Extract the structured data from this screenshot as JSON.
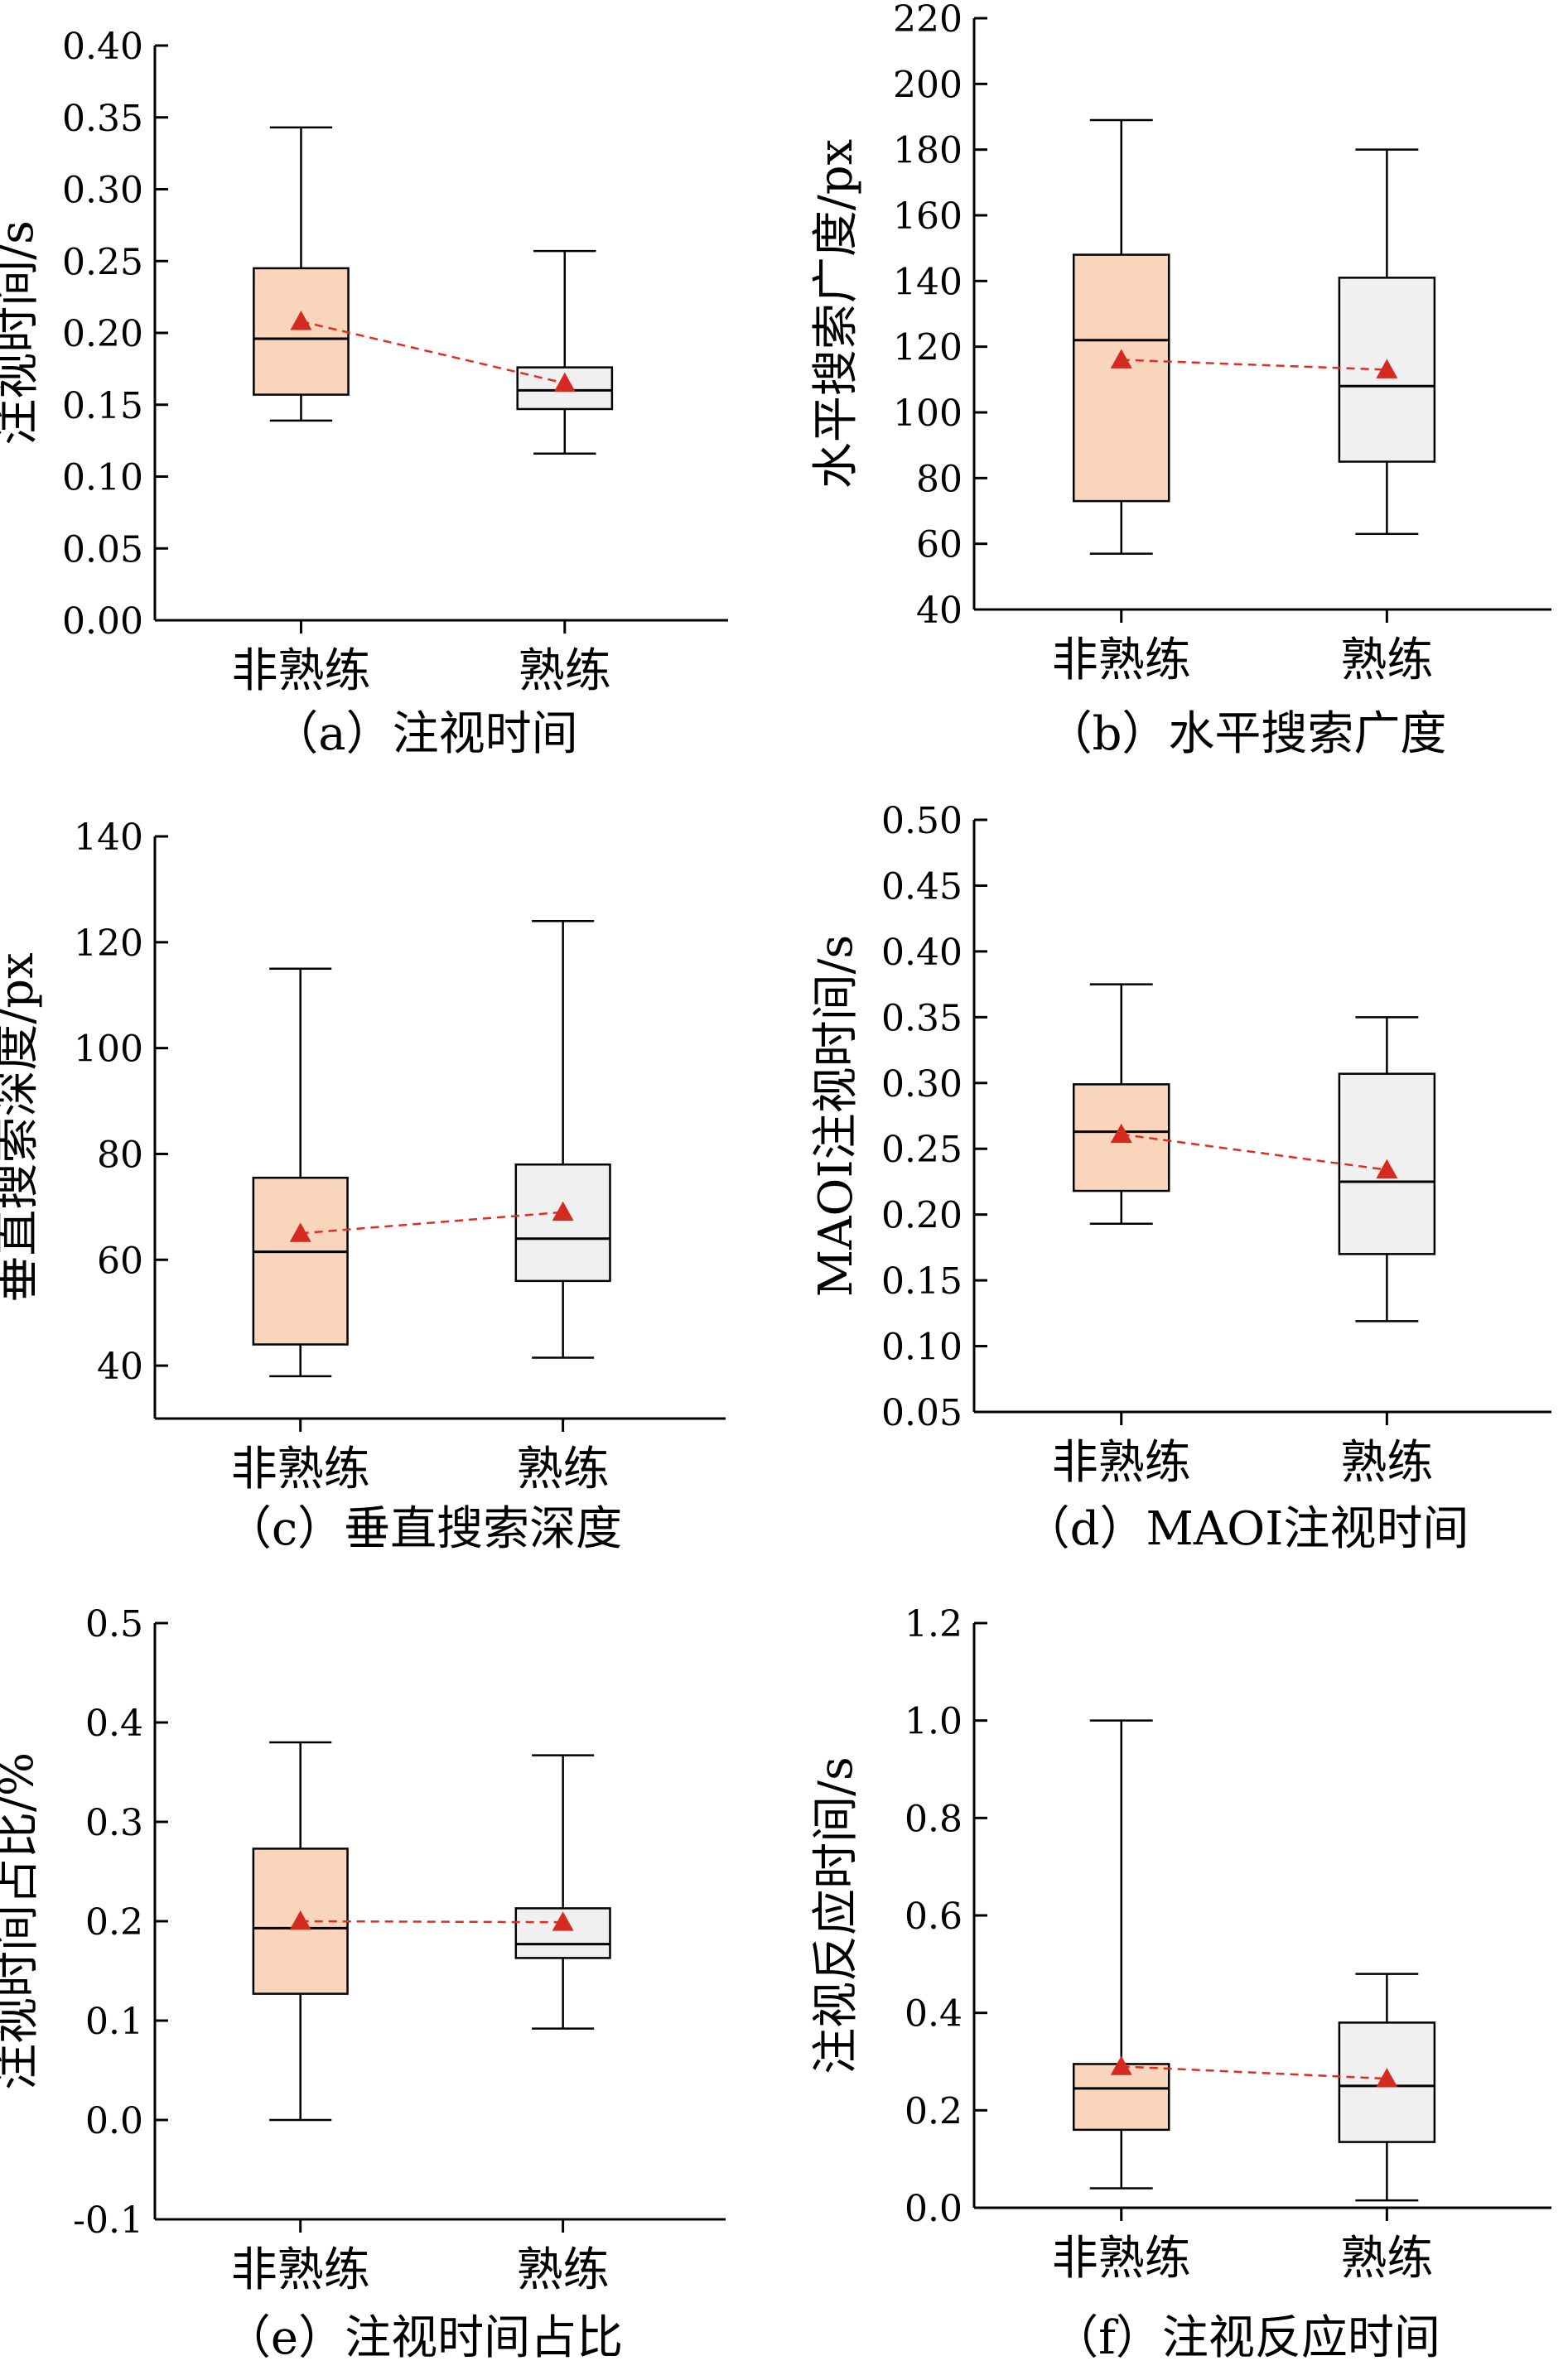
{
  "colors": {
    "nonskilled_fill": "#f8d5bb",
    "skilled_fill": "#f0f0f0",
    "box_stroke": "#000000",
    "mean_marker": "#d42a1f",
    "mean_line": "#e32b1f"
  },
  "chart_data": [
    {
      "type": "box",
      "caption": "（a）注视时间",
      "ylabel": "注视时间/s",
      "xlabel": "",
      "categories": [
        "非熟练",
        "熟练"
      ],
      "ylim": [
        0.0,
        0.4
      ],
      "yticks": [
        "0.00",
        "0.05",
        "0.10",
        "0.15",
        "0.20",
        "0.25",
        "0.30",
        "0.35",
        "0.40"
      ],
      "yticks_values": [
        0,
        0.05,
        0.1,
        0.15,
        0.2,
        0.25,
        0.3,
        0.35,
        0.4
      ],
      "series": [
        {
          "whisker_low": 0.139,
          "q1": 0.157,
          "median": 0.196,
          "q3": 0.245,
          "whisker_high": 0.343,
          "mean": 0.208
        },
        {
          "whisker_low": 0.116,
          "q1": 0.147,
          "median": 0.16,
          "q3": 0.176,
          "whisker_high": 0.257,
          "mean": 0.165
        }
      ]
    },
    {
      "type": "box",
      "caption": "（b）水平搜索广度",
      "ylabel": "水平搜索广度/px",
      "xlabel": "",
      "categories": [
        "非熟练",
        "熟练"
      ],
      "ylim": [
        40,
        220
      ],
      "yticks": [
        "40",
        "60",
        "80",
        "100",
        "120",
        "140",
        "160",
        "180",
        "200",
        "220"
      ],
      "yticks_values": [
        40,
        60,
        80,
        100,
        120,
        140,
        160,
        180,
        200,
        220
      ],
      "series": [
        {
          "whisker_low": 57,
          "q1": 73,
          "median": 122,
          "q3": 148,
          "whisker_high": 189,
          "mean": 116
        },
        {
          "whisker_low": 63,
          "q1": 85,
          "median": 108,
          "q3": 141,
          "whisker_high": 180,
          "mean": 113
        }
      ]
    },
    {
      "type": "box",
      "caption": "（c）垂直搜索深度",
      "ylabel": "垂直搜索深度/px",
      "xlabel": "",
      "categories": [
        "非熟练",
        "熟练"
      ],
      "ylim": [
        30,
        140
      ],
      "yticks": [
        "40",
        "60",
        "80",
        "100",
        "120",
        "140"
      ],
      "yticks_values": [
        40,
        60,
        80,
        100,
        120,
        140
      ],
      "series": [
        {
          "whisker_low": 38,
          "q1": 44,
          "median": 61.5,
          "q3": 75.5,
          "whisker_high": 115,
          "mean": 65
        },
        {
          "whisker_low": 41.5,
          "q1": 56,
          "median": 64,
          "q3": 78,
          "whisker_high": 124,
          "mean": 69
        }
      ]
    },
    {
      "type": "box",
      "caption": "（d）MAOI注视时间",
      "ylabel": "MAOI注视时间/s",
      "xlabel": "",
      "categories": [
        "非熟练",
        "熟练"
      ],
      "ylim": [
        0.05,
        0.5
      ],
      "yticks": [
        "0.05",
        "0.10",
        "0.15",
        "0.20",
        "0.25",
        "0.30",
        "0.35",
        "0.40",
        "0.45",
        "0.50"
      ],
      "yticks_values": [
        0.05,
        0.1,
        0.15,
        0.2,
        0.25,
        0.3,
        0.35,
        0.4,
        0.45,
        0.5
      ],
      "series": [
        {
          "whisker_low": 0.193,
          "q1": 0.218,
          "median": 0.263,
          "q3": 0.299,
          "whisker_high": 0.375,
          "mean": 0.261
        },
        {
          "whisker_low": 0.119,
          "q1": 0.17,
          "median": 0.225,
          "q3": 0.307,
          "whisker_high": 0.35,
          "mean": 0.234
        }
      ]
    },
    {
      "type": "box",
      "caption": "（e）注视时间占比",
      "ylabel": "注视时间占比/%",
      "xlabel": "",
      "categories": [
        "非熟练",
        "熟练"
      ],
      "ylim": [
        -0.1,
        0.5
      ],
      "yticks": [
        "-0.1",
        "0.0",
        "0.1",
        "0.2",
        "0.3",
        "0.4",
        "0.5"
      ],
      "yticks_values": [
        -0.1,
        0,
        0.1,
        0.2,
        0.3,
        0.4,
        0.5
      ],
      "series": [
        {
          "whisker_low": 0.0,
          "q1": 0.127,
          "median": 0.193,
          "q3": 0.273,
          "whisker_high": 0.38,
          "mean": 0.2
        },
        {
          "whisker_low": 0.092,
          "q1": 0.163,
          "median": 0.177,
          "q3": 0.213,
          "whisker_high": 0.367,
          "mean": 0.199
        }
      ]
    },
    {
      "type": "box",
      "caption": "（f）注视反应时间",
      "ylabel": "注视反应时间/s",
      "xlabel": "",
      "categories": [
        "非熟练",
        "熟练"
      ],
      "ylim": [
        0.0,
        1.2
      ],
      "yticks": [
        "0.0",
        "0.2",
        "0.4",
        "0.6",
        "0.8",
        "1.0",
        "1.2"
      ],
      "yticks_values": [
        0,
        0.2,
        0.4,
        0.6,
        0.8,
        1.0,
        1.2
      ],
      "series": [
        {
          "whisker_low": 0.04,
          "q1": 0.16,
          "median": 0.245,
          "q3": 0.295,
          "whisker_high": 1.0,
          "mean": 0.29
        },
        {
          "whisker_low": 0.015,
          "q1": 0.135,
          "median": 0.25,
          "q3": 0.38,
          "whisker_high": 0.48,
          "mean": 0.265
        }
      ]
    }
  ]
}
